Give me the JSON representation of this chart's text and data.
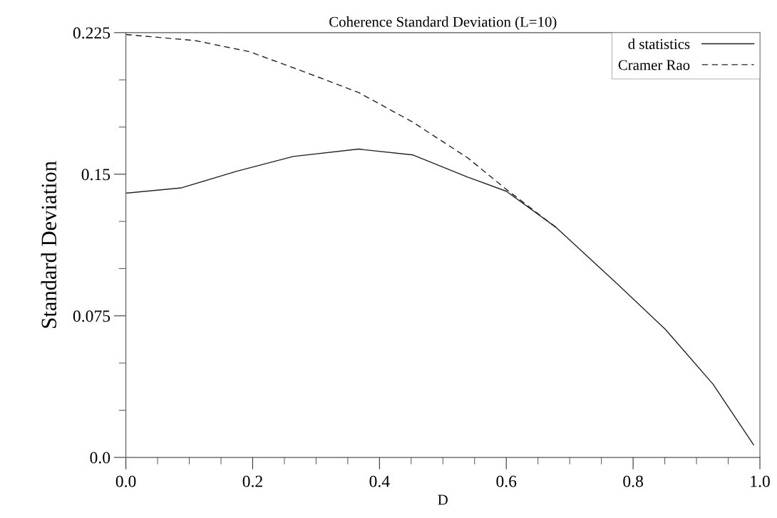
{
  "chart_data": {
    "type": "line",
    "title": "Coherence Standard Deviation (L=10)",
    "xlabel": "D",
    "ylabel": "Standard Deviation",
    "series": [
      {
        "name": "d statistics",
        "color": "#222222",
        "line_style": "solid",
        "x": [
          0,
          0.088,
          0.174,
          0.264,
          0.367,
          0.453,
          0.539,
          0.6,
          0.679,
          0.776,
          0.851,
          0.926,
          0.99
        ],
        "values": [
          0.14,
          0.1428,
          0.1515,
          0.1594,
          0.1633,
          0.1602,
          0.1485,
          0.141,
          0.1217,
          0.0916,
          0.0678,
          0.0388,
          0.0067
        ]
      },
      {
        "name": "Cramer Rao",
        "color": "#222222",
        "line_style": "dashed",
        "x": [
          0,
          0.109,
          0.195,
          0.281,
          0.367,
          0.453,
          0.539,
          0.6,
          0.664,
          0.679
        ],
        "values": [
          0.224,
          0.2208,
          0.2149,
          0.2043,
          0.1933,
          0.1775,
          0.1587,
          0.142,
          0.1255,
          0.1217
        ]
      }
    ],
    "xlim": [
      0,
      1.0
    ],
    "ylim": [
      0,
      0.225
    ],
    "xticks": [
      {
        "value": 0,
        "label": "0.0"
      },
      0.2,
      0.4,
      0.6,
      0.8,
      {
        "value": 1.0,
        "label": "1.0"
      }
    ],
    "yticks": [
      {
        "value": 0,
        "label": "0.0"
      },
      0.075,
      0.15,
      0.225
    ],
    "grid": false,
    "legend": "top right",
    "marker": "none"
  }
}
